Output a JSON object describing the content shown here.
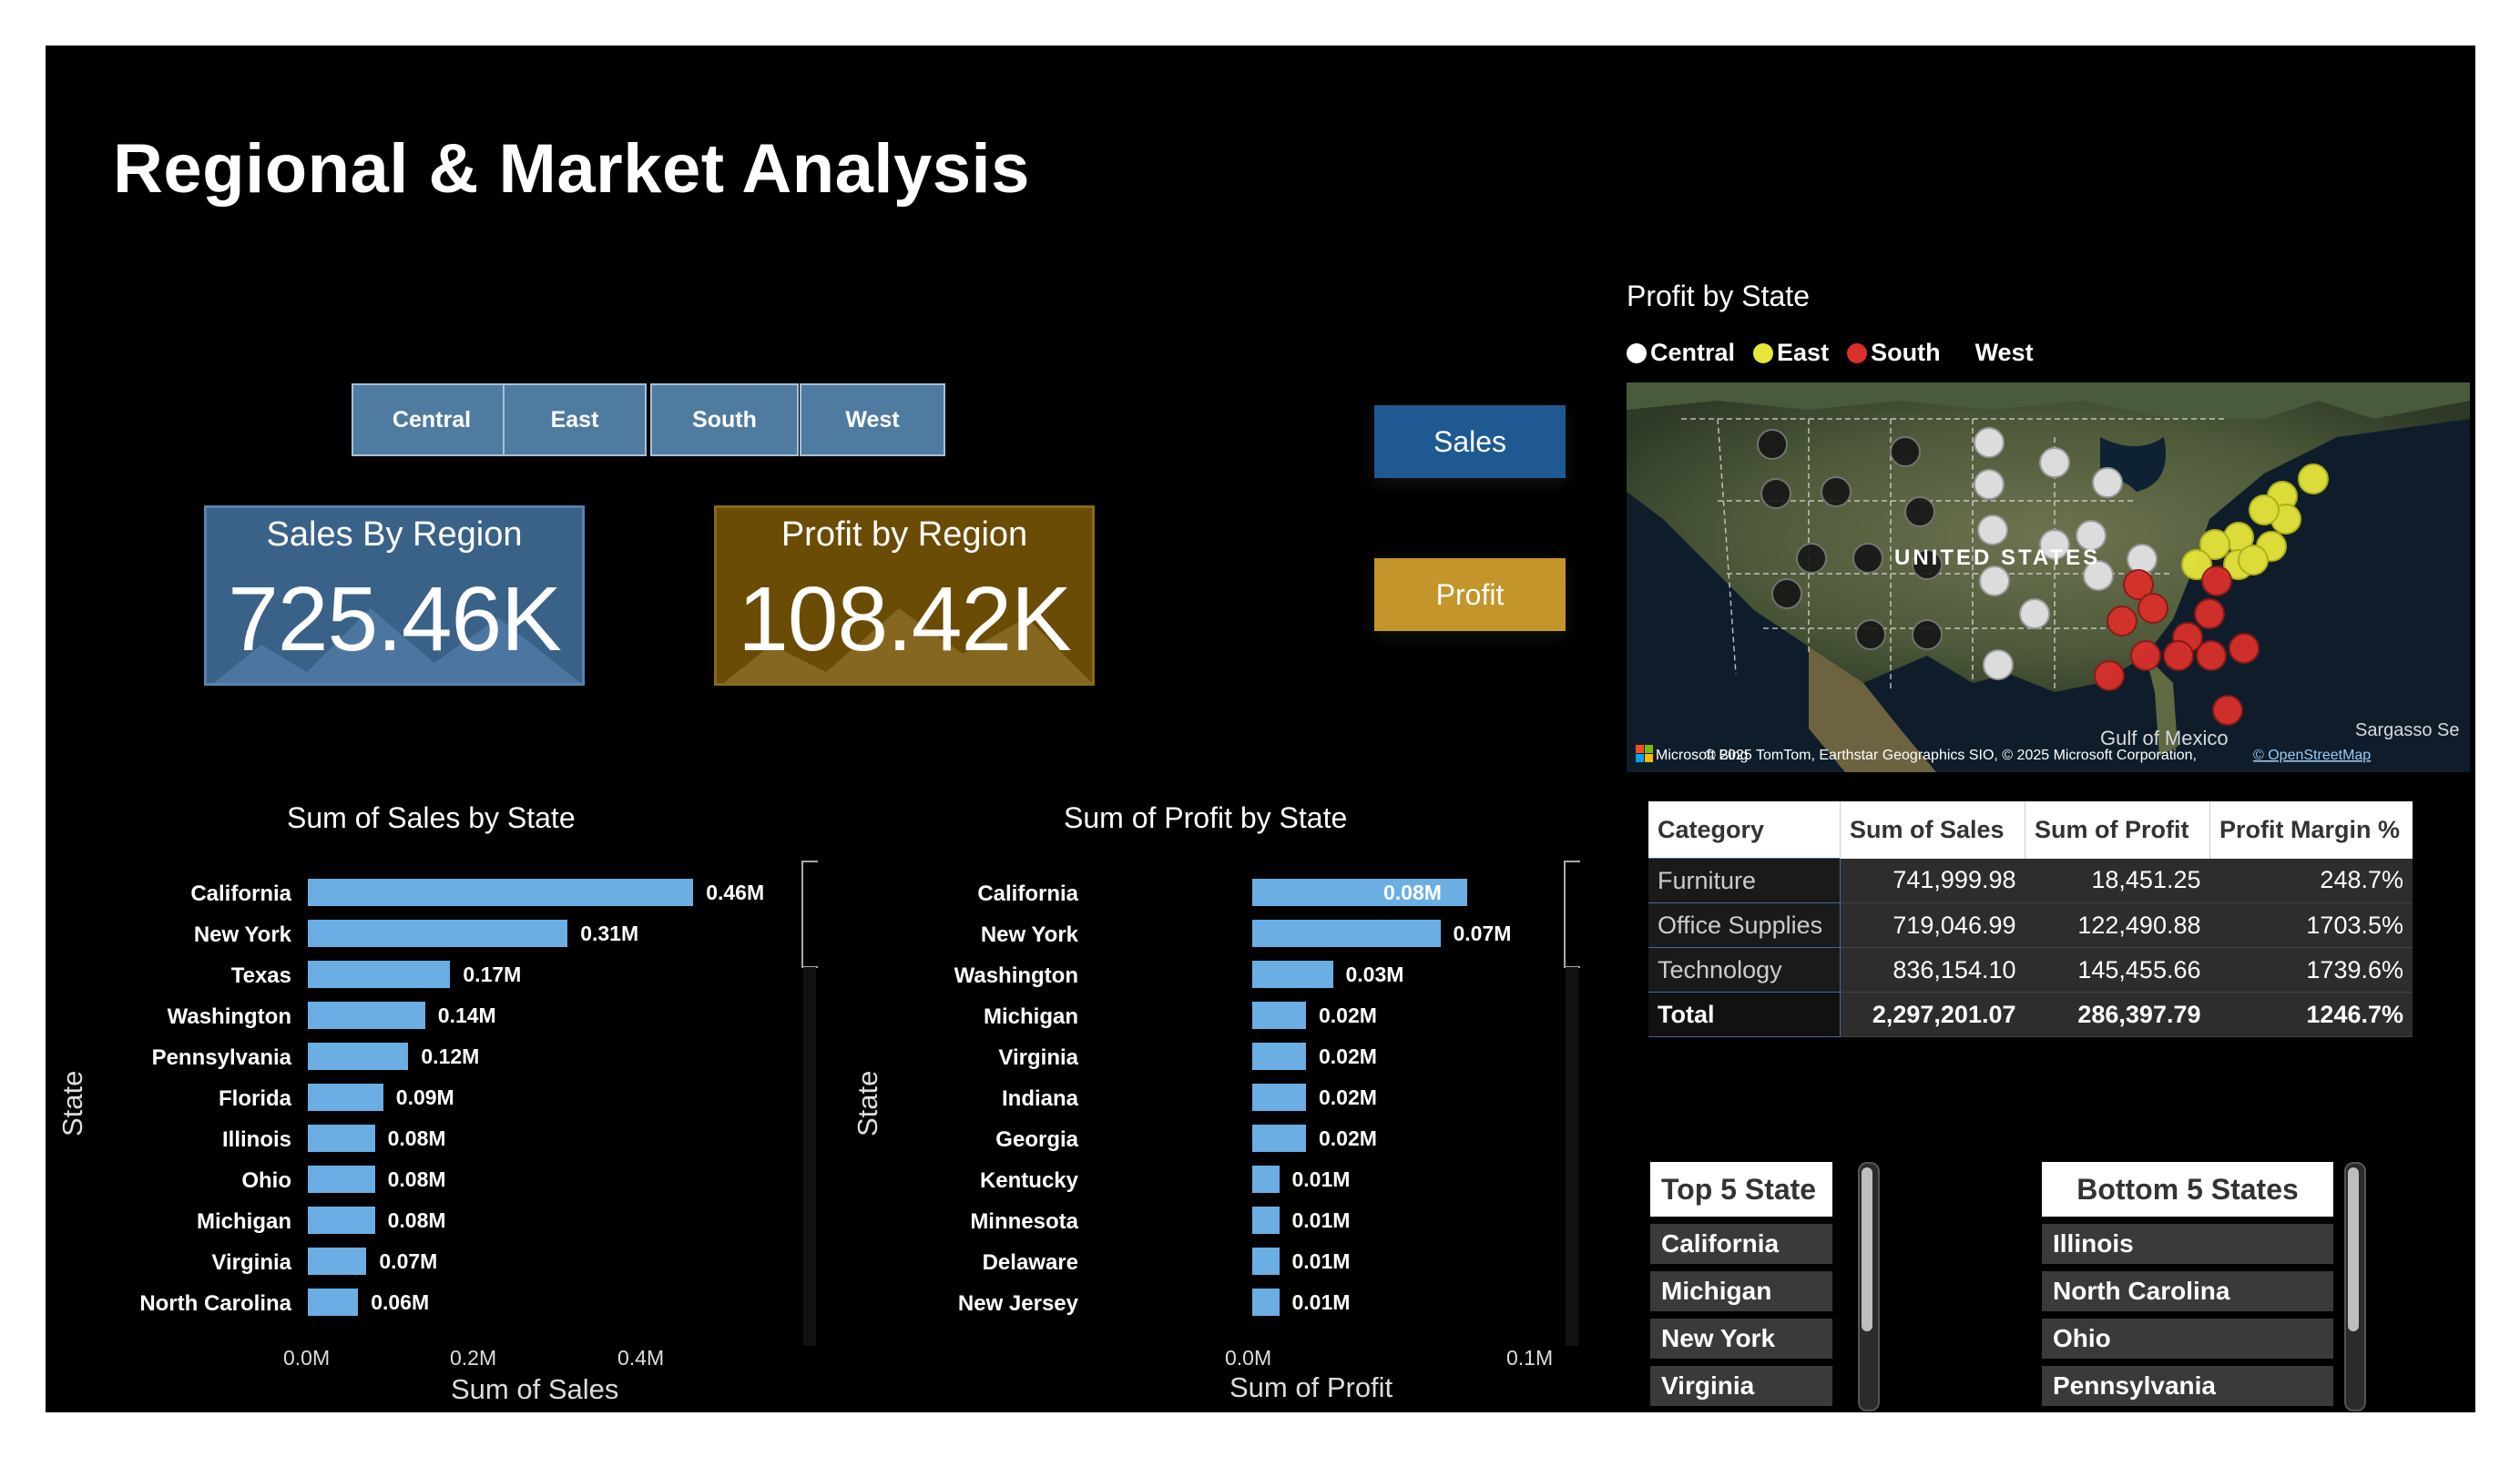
{
  "title": "Regional & Market Analysis",
  "region_slicer": [
    "Central",
    "East",
    "South",
    "West"
  ],
  "kpis": {
    "sales": {
      "label": "Sales By Region",
      "value": "725.46K"
    },
    "profit": {
      "label": "Profit by Region",
      "value": "108.42K"
    }
  },
  "nav_buttons": {
    "sales": "Sales",
    "profit": "Profit"
  },
  "colors": {
    "accent_blue": "#6aaee4",
    "sales_btn": "#1e5a91",
    "profit_btn": "#c4952a",
    "central": "#ffffff",
    "east": "#e6e63a",
    "south": "#d9302b"
  },
  "sales_chart": {
    "title": "Sum of Sales by State",
    "xlabel": "Sum of Sales",
    "ylabel": "State",
    "ticks": [
      "0.0M",
      "0.2M",
      "0.4M"
    ],
    "states": [
      "California",
      "New York",
      "Texas",
      "Washington",
      "Pennsylvania",
      "Florida",
      "Illinois",
      "Ohio",
      "Michigan",
      "Virginia",
      "North Carolina"
    ],
    "labels": [
      "0.46M",
      "0.31M",
      "0.17M",
      "0.14M",
      "0.12M",
      "0.09M",
      "0.08M",
      "0.08M",
      "0.08M",
      "0.07M",
      "0.06M"
    ]
  },
  "profit_chart": {
    "title": "Sum of Profit by State",
    "xlabel": "Sum of Profit",
    "ylabel": "State",
    "ticks": [
      "0.0M",
      "0.1M"
    ],
    "states": [
      "California",
      "New York",
      "Washington",
      "Michigan",
      "Virginia",
      "Indiana",
      "Georgia",
      "Kentucky",
      "Minnesota",
      "Delaware",
      "New Jersey"
    ],
    "labels": [
      "0.08M",
      "0.07M",
      "0.03M",
      "0.02M",
      "0.02M",
      "0.02M",
      "0.02M",
      "0.01M",
      "0.01M",
      "0.01M",
      "0.01M"
    ]
  },
  "chart_data": [
    {
      "type": "bar",
      "title": "Sum of Sales by State",
      "xlabel": "Sum of Sales",
      "ylabel": "State",
      "categories": [
        "California",
        "New York",
        "Texas",
        "Washington",
        "Pennsylvania",
        "Florida",
        "Illinois",
        "Ohio",
        "Michigan",
        "Virginia",
        "North Carolina"
      ],
      "values": [
        0.46,
        0.31,
        0.17,
        0.14,
        0.12,
        0.09,
        0.08,
        0.08,
        0.08,
        0.07,
        0.06
      ],
      "xlim": [
        0,
        0.5
      ]
    },
    {
      "type": "bar",
      "title": "Sum of Profit by State",
      "xlabel": "Sum of Profit",
      "ylabel": "State",
      "categories": [
        "California",
        "New York",
        "Washington",
        "Michigan",
        "Virginia",
        "Indiana",
        "Georgia",
        "Kentucky",
        "Minnesota",
        "Delaware",
        "New Jersey"
      ],
      "values": [
        0.08,
        0.07,
        0.03,
        0.02,
        0.02,
        0.02,
        0.02,
        0.01,
        0.01,
        0.01,
        0.01
      ],
      "xlim": [
        0,
        0.1
      ]
    }
  ],
  "map": {
    "title": "Profit by State",
    "legend": [
      {
        "name": "Central",
        "color": "#ffffff"
      },
      {
        "name": "East",
        "color": "#e6e63a"
      },
      {
        "name": "South",
        "color": "#d9302b"
      },
      {
        "name": "West",
        "color": ""
      }
    ],
    "country_label": "UNITED STATES",
    "gulf_label": "Gulf of Mexico",
    "sea_label": "Sargasso Se",
    "brand": "Microsoft Bing",
    "attribution": "© 2025 TomTom, Earthstar Geographics SIO, © 2025 Microsoft Corporation,",
    "osm_link": "© OpenStreetMap"
  },
  "matrix": {
    "headers": [
      "Category",
      "Sum of Sales",
      "Sum of Profit",
      "Profit Margin %"
    ],
    "rows": [
      [
        "Furniture",
        "741,999.98",
        "18,451.25",
        "248.7%"
      ],
      [
        "Office Supplies",
        "719,046.99",
        "122,490.88",
        "1703.5%"
      ],
      [
        "Technology",
        "836,154.10",
        "145,455.66",
        "1739.6%"
      ]
    ],
    "total": [
      "Total",
      "2,297,201.07",
      "286,397.79",
      "1246.7%"
    ]
  },
  "top5": {
    "title": "Top 5 State",
    "items": [
      "California",
      "Michigan",
      "New York",
      "Virginia"
    ]
  },
  "bottom5": {
    "title": "Bottom 5 States",
    "items": [
      "Illinois",
      "North Carolina",
      "Ohio",
      "Pennsylvania"
    ]
  }
}
